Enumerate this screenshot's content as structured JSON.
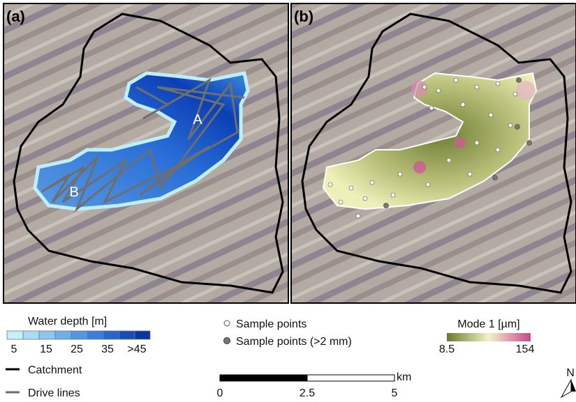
{
  "panels": [
    {
      "label": "(a)",
      "annotations": [
        "A",
        "B"
      ]
    },
    {
      "label": "(b)"
    }
  ],
  "legend": {
    "water_depth": {
      "title": "Water depth [m]",
      "ticks": [
        5,
        15,
        25,
        35,
        ">45"
      ]
    },
    "catchment": "Catchment",
    "drive_lines": "Drive lines",
    "sample_points": "Sample points",
    "sample_points_large": "Sample points (>2 mm)",
    "mode": {
      "title": "Mode 1 [µm]",
      "min": 8.5,
      "max": 154
    }
  },
  "scale_bar": {
    "ticks": [
      0,
      2.5,
      5
    ],
    "unit": "km"
  },
  "north": "N"
}
